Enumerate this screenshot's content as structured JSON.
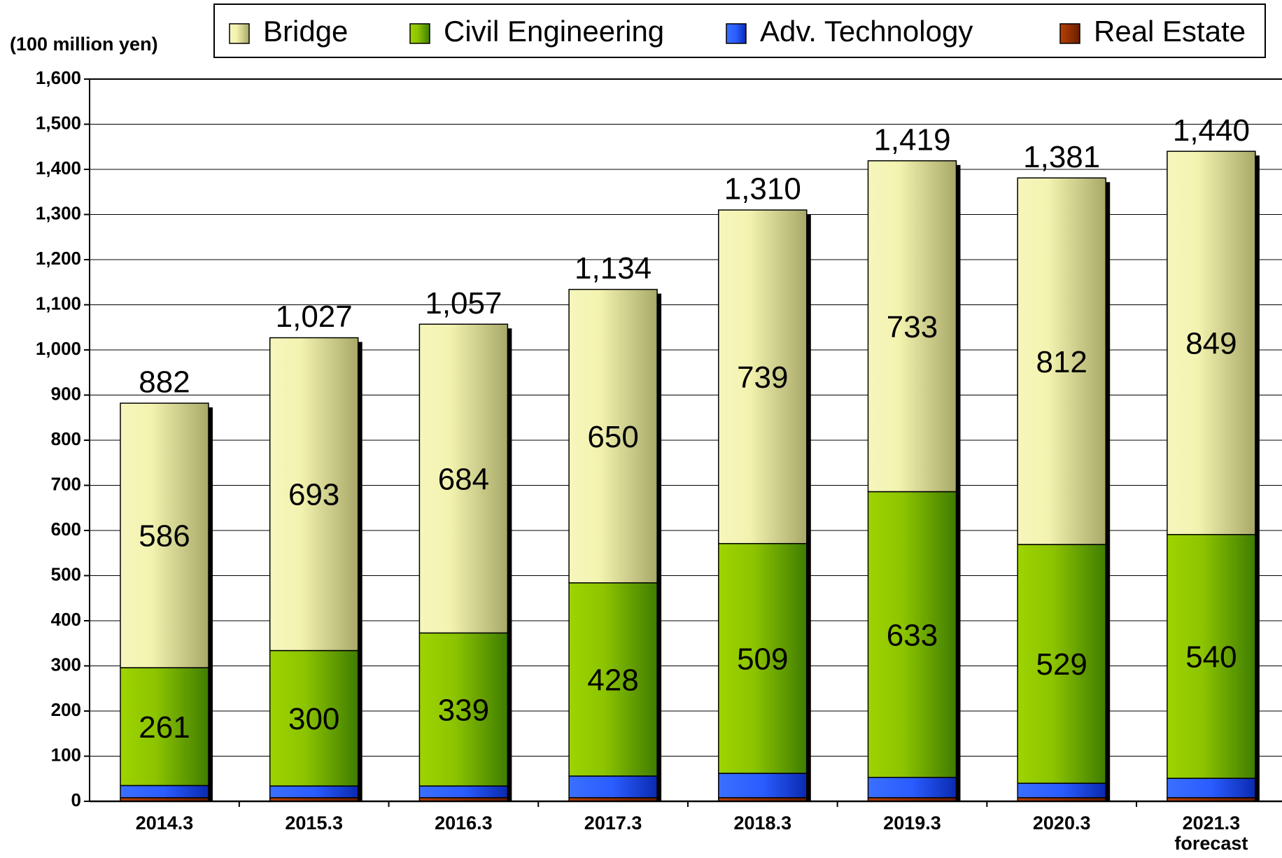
{
  "chart_data": {
    "type": "stacked_bar",
    "y_axis_label": "(100 million yen)",
    "categories": [
      "2014.3",
      "2015.3",
      "2016.3",
      "2017.3",
      "2018.3",
      "2019.3",
      "2020.3",
      "2021.3\nforecast"
    ],
    "series": [
      {
        "name": "Real Estate",
        "color": "#a83200",
        "values": [
          8,
          8,
          8,
          8,
          8,
          8,
          8,
          8
        ]
      },
      {
        "name": "Adv. Technology",
        "color": "#2a5cff",
        "values": [
          27,
          26,
          26,
          48,
          54,
          45,
          32,
          43
        ]
      },
      {
        "name": "Civil Engineering",
        "color": "#8cc400",
        "values": [
          261,
          300,
          339,
          428,
          509,
          633,
          529,
          540
        ]
      },
      {
        "name": "Bridge",
        "color": "#eeeeaa",
        "values": [
          586,
          693,
          684,
          650,
          739,
          733,
          812,
          849
        ]
      }
    ],
    "labeled_series": [
      "Civil Engineering",
      "Bridge"
    ],
    "totals": [
      882,
      1027,
      1057,
      1134,
      1310,
      1419,
      1381,
      1440
    ],
    "totals_labels": [
      "882",
      "1,027",
      "1,057",
      "1,134",
      "1,310",
      "1,419",
      "1,381",
      "1,440"
    ],
    "legend_order": [
      "Bridge",
      "Civil Engineering",
      "Adv. Technology",
      "Real Estate"
    ],
    "legend": "top",
    "grid": true,
    "ylim": [
      0,
      1600
    ],
    "yticks": [
      0,
      100,
      200,
      300,
      400,
      500,
      600,
      700,
      800,
      900,
      {
        "value": 1000,
        "label": "1,000"
      },
      {
        "value": 1100,
        "label": "1,100"
      },
      {
        "value": 1200,
        "label": "1,200"
      },
      {
        "value": 1300,
        "label": "1,300"
      },
      {
        "value": 1400,
        "label": "1,400"
      },
      {
        "value": 1500,
        "label": "1,500"
      },
      {
        "value": 1600,
        "label": "1,600"
      }
    ]
  }
}
